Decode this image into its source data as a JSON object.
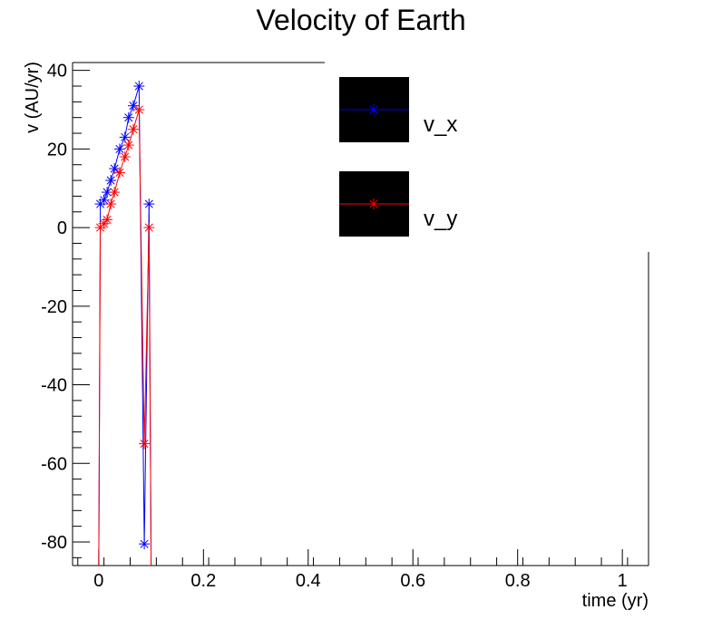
{
  "chart_data": {
    "type": "line",
    "title": "Velocity of Earth",
    "xlabel": "time (yr)",
    "ylabel": "v (AU/yr)",
    "xlim": [
      -0.05,
      1.05
    ],
    "ylim": [
      -86,
      42
    ],
    "xticks": [
      0,
      0.2,
      0.4,
      0.6,
      0.8,
      1
    ],
    "xtick_labels": [
      "0",
      "0.2",
      "0.4",
      "0.6",
      "0.8",
      "1"
    ],
    "yticks": [
      -80,
      -60,
      -40,
      -20,
      0,
      20,
      40
    ],
    "ytick_labels": [
      "-80",
      "-60",
      "-40",
      "-20",
      "0",
      "20",
      "40"
    ],
    "grid": false,
    "legend_position": "top-center",
    "series": [
      {
        "name": "v_x",
        "color": "#0000ff",
        "marker": "asterisk",
        "x": [
          0.003,
          0.01,
          0.016,
          0.023,
          0.03,
          0.04,
          0.05,
          0.057,
          0.066,
          0.077,
          0.087,
          0.096
        ],
        "y": [
          6,
          7,
          9,
          12,
          15,
          20,
          23,
          28,
          31,
          36,
          -80.5,
          6
        ]
      },
      {
        "name": "v_y",
        "color": "#ff0000",
        "marker": "asterisk",
        "x": [
          0.003,
          0.01,
          0.016,
          0.023,
          0.03,
          0.04,
          0.05,
          0.057,
          0.066,
          0.077,
          0.087,
          0.096
        ],
        "y": [
          0,
          1,
          2,
          6,
          9,
          14,
          18,
          21,
          25,
          30,
          -55,
          0
        ]
      }
    ]
  }
}
